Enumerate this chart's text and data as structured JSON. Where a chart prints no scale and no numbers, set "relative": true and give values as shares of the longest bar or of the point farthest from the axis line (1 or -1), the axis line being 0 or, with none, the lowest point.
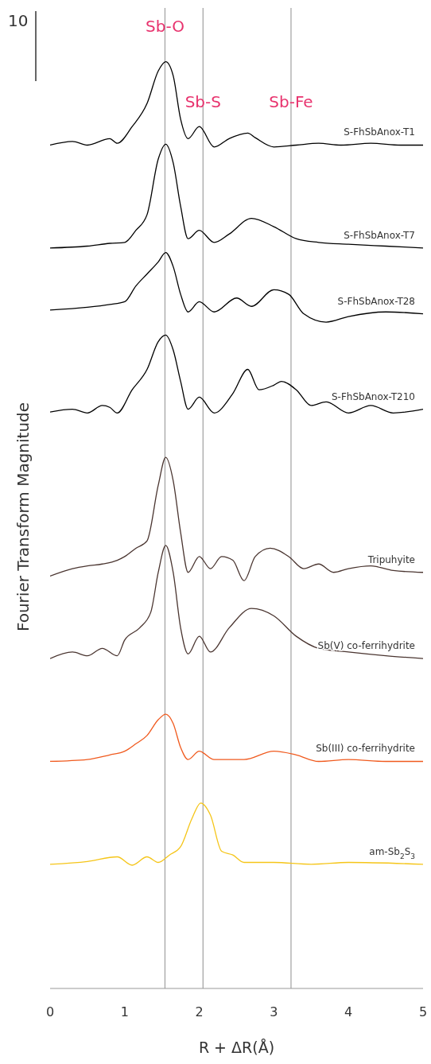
{
  "chart_data": {
    "type": "line",
    "relative": true,
    "xlabel": "R + ΔR(Å)",
    "ylabel": "Fourier Transform Magnitude",
    "xlim": [
      0,
      5
    ],
    "xticks": [
      0,
      1,
      2,
      3,
      4,
      5
    ],
    "annotations": [
      "10"
    ],
    "ref_lines": [
      {
        "axis": "x",
        "value": 1.54,
        "label": "Sb-O",
        "color": "#a0a0a0"
      },
      {
        "axis": "x",
        "value": 2.05,
        "label": "Sb-S",
        "color": "#a0a0a0"
      },
      {
        "axis": "x",
        "value": 3.23,
        "label": "Sb-Fe",
        "color": "#a0a0a0"
      }
    ],
    "series": [
      {
        "name": "S-FhSbAnox-T1",
        "color": "#000000",
        "x": [
          0,
          0.3,
          0.5,
          0.8,
          0.9,
          1.1,
          1.3,
          1.45,
          1.55,
          1.65,
          1.75,
          1.85,
          2.0,
          2.2,
          2.4,
          2.65,
          2.75,
          3.0,
          3.3,
          3.6,
          3.9,
          4.3,
          4.7,
          5.0
        ],
        "values": [
          0.91,
          0.914,
          0.91,
          0.917,
          0.912,
          0.93,
          0.955,
          0.99,
          1.0,
          0.985,
          0.938,
          0.917,
          0.93,
          0.908,
          0.917,
          0.923,
          0.918,
          0.908,
          0.91,
          0.912,
          0.91,
          0.912,
          0.91,
          0.91
        ]
      },
      {
        "name": "S-FhSbAnox-T7",
        "color": "#000000",
        "x": [
          0,
          0.5,
          0.8,
          1.0,
          1.15,
          1.3,
          1.45,
          1.55,
          1.65,
          1.75,
          1.85,
          2.0,
          2.2,
          2.4,
          2.7,
          3.0,
          3.3,
          3.6,
          4.0,
          4.5,
          5.0
        ],
        "values": [
          0.799,
          0.801,
          0.804,
          0.805,
          0.818,
          0.835,
          0.895,
          0.911,
          0.891,
          0.844,
          0.809,
          0.818,
          0.805,
          0.814,
          0.831,
          0.822,
          0.809,
          0.805,
          0.803,
          0.801,
          0.799
        ]
      },
      {
        "name": "S-FhSbAnox-T28",
        "color": "#000000",
        "x": [
          0,
          0.5,
          0.8,
          1.0,
          1.15,
          1.3,
          1.45,
          1.55,
          1.65,
          1.75,
          1.85,
          2.0,
          2.2,
          2.5,
          2.7,
          3.0,
          3.2,
          3.4,
          3.7,
          4.0,
          4.5,
          5.0
        ],
        "values": [
          0.732,
          0.735,
          0.738,
          0.741,
          0.758,
          0.771,
          0.784,
          0.794,
          0.779,
          0.749,
          0.73,
          0.741,
          0.73,
          0.745,
          0.736,
          0.754,
          0.749,
          0.728,
          0.719,
          0.725,
          0.73,
          0.728
        ]
      },
      {
        "name": "S-FhSbAnox-T210",
        "color": "#000000",
        "x": [
          0,
          0.3,
          0.5,
          0.7,
          0.8,
          0.9,
          1.1,
          1.3,
          1.45,
          1.55,
          1.65,
          1.75,
          1.85,
          2.0,
          2.2,
          2.45,
          2.65,
          2.8,
          3.0,
          3.1,
          3.3,
          3.5,
          3.7,
          4.0,
          4.3,
          4.6,
          5.0
        ],
        "values": [
          0.622,
          0.625,
          0.621,
          0.629,
          0.627,
          0.621,
          0.646,
          0.668,
          0.698,
          0.705,
          0.689,
          0.655,
          0.625,
          0.638,
          0.621,
          0.642,
          0.668,
          0.646,
          0.651,
          0.655,
          0.646,
          0.629,
          0.633,
          0.621,
          0.629,
          0.621,
          0.625
        ]
      },
      {
        "name": "Tripuhyite",
        "color": "#4a3530",
        "x": [
          0,
          0.3,
          0.5,
          0.7,
          0.9,
          1.0,
          1.15,
          1.3,
          1.45,
          1.55,
          1.65,
          1.75,
          1.85,
          2.0,
          2.15,
          2.3,
          2.45,
          2.6,
          2.75,
          2.95,
          3.2,
          3.4,
          3.6,
          3.8,
          4.0,
          4.3,
          4.6,
          5.0
        ],
        "values": [
          0.445,
          0.453,
          0.456,
          0.458,
          0.462,
          0.466,
          0.475,
          0.483,
          0.543,
          0.573,
          0.548,
          0.492,
          0.449,
          0.466,
          0.453,
          0.466,
          0.462,
          0.44,
          0.466,
          0.475,
          0.466,
          0.453,
          0.458,
          0.449,
          0.453,
          0.456,
          0.451,
          0.449
        ]
      },
      {
        "name": "Sb(V) co-ferrihydrite",
        "color": "#4a3530",
        "x": [
          0,
          0.3,
          0.5,
          0.7,
          0.9,
          1.0,
          1.2,
          1.35,
          1.45,
          1.55,
          1.65,
          1.75,
          1.85,
          2.0,
          2.15,
          2.4,
          2.7,
          3.0,
          3.3,
          3.6,
          4.0,
          4.5,
          5.0
        ],
        "values": [
          0.356,
          0.363,
          0.359,
          0.367,
          0.359,
          0.376,
          0.389,
          0.406,
          0.449,
          0.478,
          0.449,
          0.389,
          0.361,
          0.38,
          0.363,
          0.389,
          0.41,
          0.402,
          0.38,
          0.367,
          0.363,
          0.359,
          0.356
        ]
      },
      {
        "name": "Sb(III) co-ferrihydrite",
        "color": "#f05a1e",
        "x": [
          0,
          0.5,
          0.8,
          1.0,
          1.15,
          1.3,
          1.45,
          1.55,
          1.65,
          1.75,
          1.85,
          2.0,
          2.2,
          2.6,
          3.0,
          3.3,
          3.6,
          4.0,
          4.5,
          5.0
        ],
        "values": [
          0.245,
          0.247,
          0.252,
          0.256,
          0.264,
          0.273,
          0.29,
          0.296,
          0.286,
          0.26,
          0.247,
          0.256,
          0.247,
          0.247,
          0.256,
          0.252,
          0.245,
          0.247,
          0.245,
          0.245
        ]
      },
      {
        "name": "am-Sb$_{2}$S$_{3}$",
        "color": "#f5c518",
        "x": [
          0,
          0.5,
          0.9,
          1.1,
          1.3,
          1.45,
          1.6,
          1.75,
          1.9,
          2.02,
          2.15,
          2.3,
          2.45,
          2.6,
          3.0,
          3.5,
          4.0,
          5.0
        ],
        "values": [
          0.134,
          0.137,
          0.142,
          0.133,
          0.142,
          0.136,
          0.144,
          0.153,
          0.183,
          0.2,
          0.187,
          0.148,
          0.144,
          0.136,
          0.136,
          0.134,
          0.136,
          0.134
        ]
      }
    ]
  }
}
